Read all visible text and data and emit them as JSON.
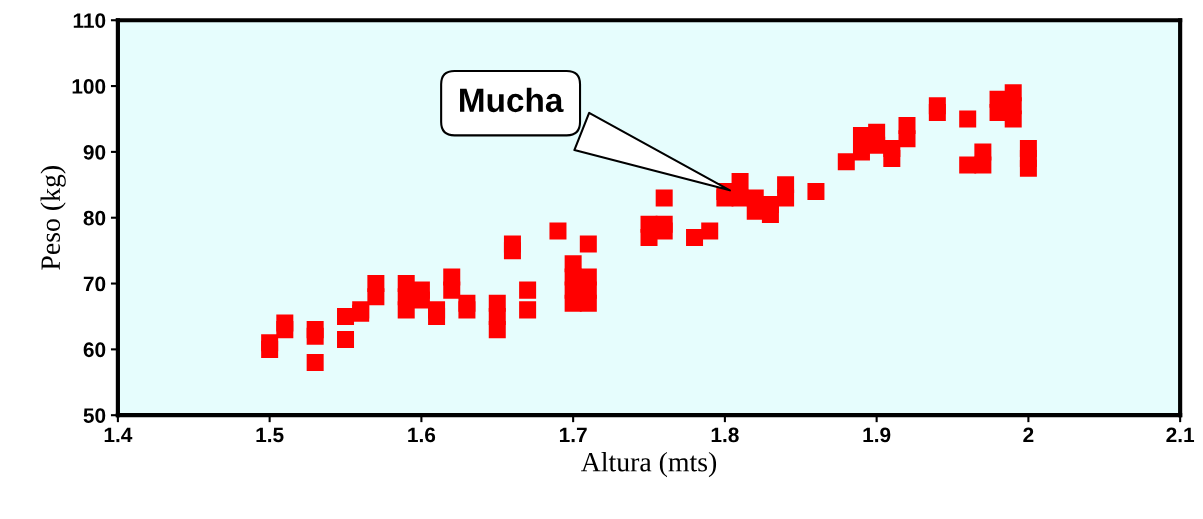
{
  "chart_data": {
    "type": "scatter",
    "xlabel": "Altura (mts)",
    "ylabel": "Peso (kg)",
    "xlim": [
      1.4,
      2.1
    ],
    "xticks": [
      1.4,
      1.5,
      1.6,
      1.7,
      1.8,
      1.9,
      2,
      2.1
    ],
    "ylim": [
      50,
      110
    ],
    "yticks": [
      50,
      60,
      70,
      80,
      90,
      100,
      110
    ],
    "grid": false,
    "marker": "square",
    "annotations": [
      {
        "text": "Mucha",
        "x": 1.805,
        "y": 84
      }
    ],
    "series": [
      {
        "color": "#ff0000",
        "x": [
          1.5,
          1.5,
          1.51,
          1.51,
          1.53,
          1.53,
          1.53,
          1.55,
          1.55,
          1.56,
          1.56,
          1.57,
          1.57,
          1.59,
          1.59,
          1.59,
          1.6,
          1.6,
          1.61,
          1.61,
          1.62,
          1.62,
          1.63,
          1.63,
          1.65,
          1.65,
          1.65,
          1.66,
          1.66,
          1.67,
          1.67,
          1.69,
          1.7,
          1.7,
          1.7,
          1.7,
          1.71,
          1.71,
          1.71,
          1.71,
          1.75,
          1.75,
          1.76,
          1.76,
          1.76,
          1.78,
          1.79,
          1.8,
          1.8,
          1.81,
          1.81,
          1.82,
          1.82,
          1.83,
          1.83,
          1.84,
          1.84,
          1.86,
          1.88,
          1.89,
          1.89,
          1.9,
          1.9,
          1.91,
          1.91,
          1.92,
          1.92,
          1.94,
          1.94,
          1.96,
          1.96,
          1.97,
          1.97,
          1.98,
          1.98,
          1.99,
          1.99,
          1.99,
          2,
          2,
          2
        ],
        "values": [
          60,
          61,
          63,
          64,
          62,
          63,
          58,
          65,
          61.5,
          66,
          65.5,
          68,
          70,
          66,
          68,
          70,
          67.5,
          69,
          65,
          66,
          69,
          71,
          66,
          67,
          63,
          65,
          67,
          75,
          76,
          66,
          69,
          78,
          67,
          69,
          71,
          73,
          67,
          69,
          71,
          76,
          77,
          79,
          78,
          79,
          83,
          77,
          78,
          83,
          84,
          83,
          85.5,
          81,
          83,
          80.5,
          82,
          83,
          85,
          84,
          88.5,
          90,
          92.5,
          91,
          93,
          89,
          90.5,
          92,
          94,
          96,
          97,
          95,
          88,
          88,
          90,
          96,
          98,
          95,
          97,
          99,
          87.5,
          89,
          90.5
        ]
      }
    ]
  }
}
